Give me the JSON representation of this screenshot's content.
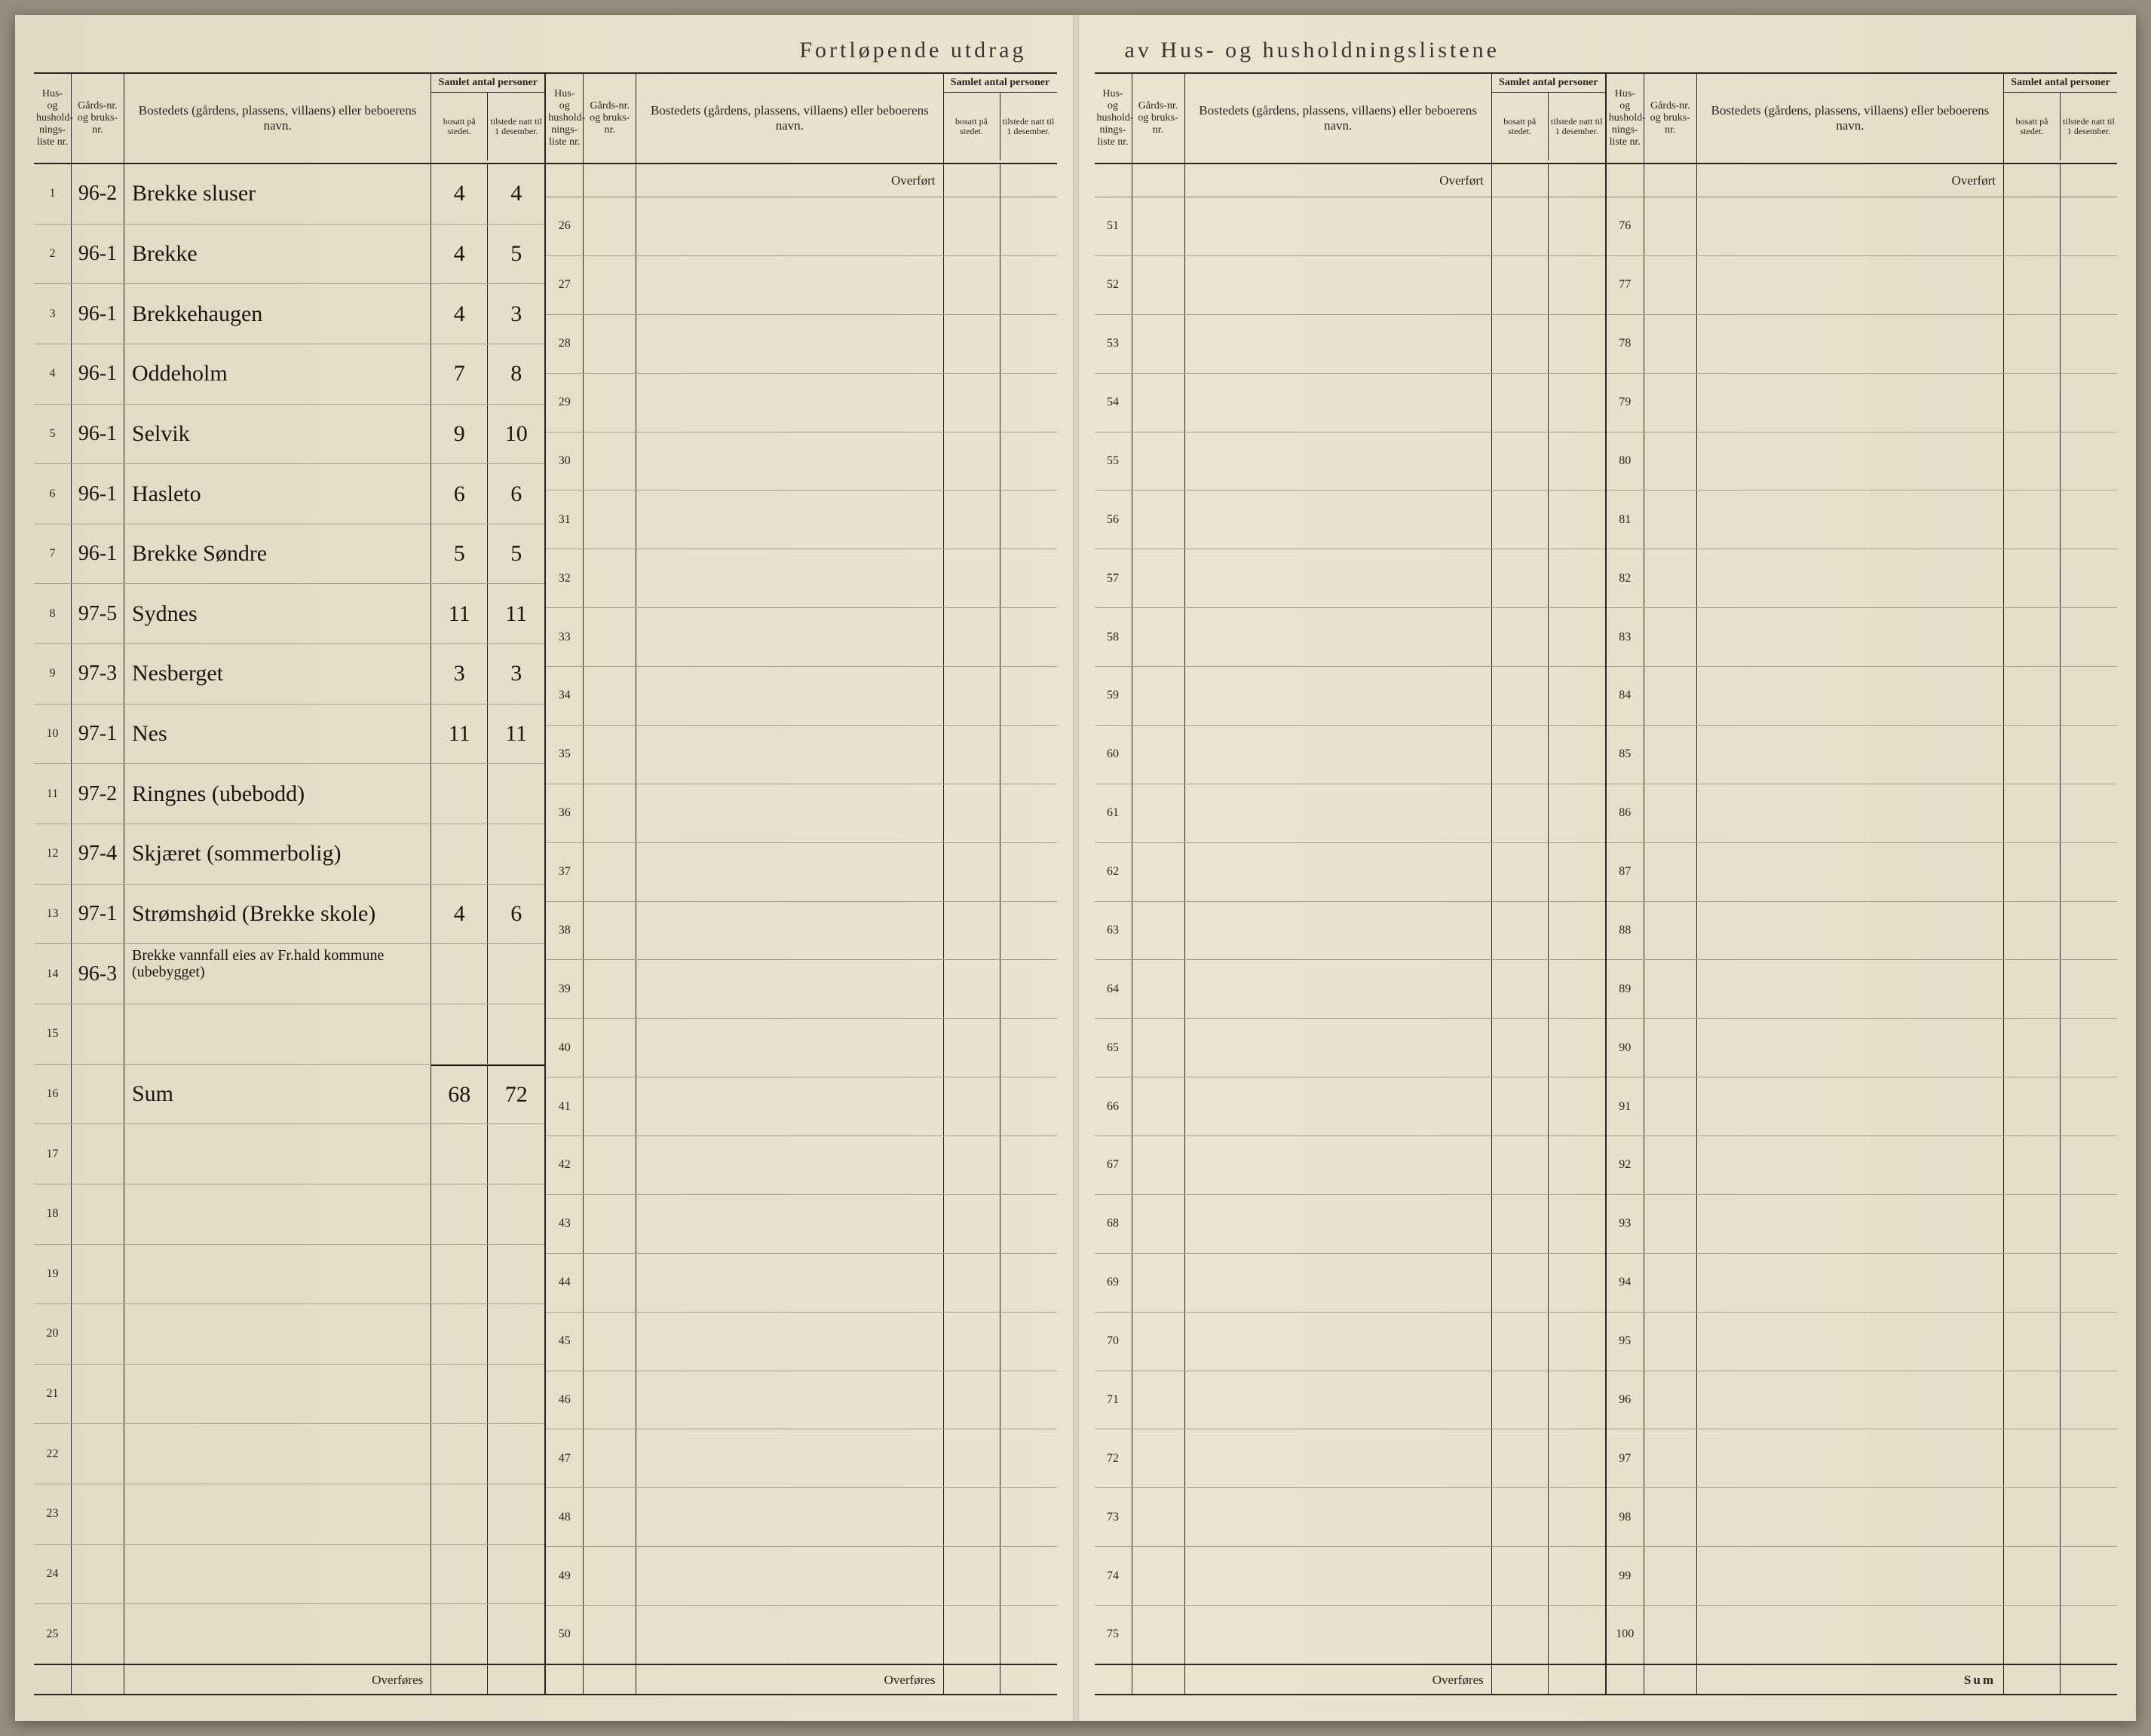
{
  "title_left": "Fortløpende utdrag",
  "title_right": "av Hus- og husholdningslistene",
  "header": {
    "nr": "Hus- og hushold-nings-liste nr.",
    "gard": "Gårds-nr. og bruks-nr.",
    "bosted": "Bostedets (gårdens, plassens, villaens) eller beboerens navn.",
    "samlet": "Samlet antal personer",
    "bosatt": "bosatt på stedet.",
    "tilstede": "tilstede natt til 1 desember."
  },
  "overfort": "Overført",
  "overfores": "Overføres",
  "sum": "Sum",
  "blocks": [
    {
      "start": 1,
      "rows": [
        {
          "n": "1",
          "g": "96-2",
          "b": "Brekke sluser",
          "s1": "4",
          "s2": "4"
        },
        {
          "n": "2",
          "g": "96-1",
          "b": "Brekke",
          "s1": "4",
          "s2": "5"
        },
        {
          "n": "3",
          "g": "96-1",
          "b": "Brekkehaugen",
          "s1": "4",
          "s2": "3"
        },
        {
          "n": "4",
          "g": "96-1",
          "b": "Oddeholm",
          "s1": "7",
          "s2": "8"
        },
        {
          "n": "5",
          "g": "96-1",
          "b": "Selvik",
          "s1": "9",
          "s2": "10"
        },
        {
          "n": "6",
          "g": "96-1",
          "b": "Hasleto",
          "s1": "6",
          "s2": "6"
        },
        {
          "n": "7",
          "g": "96-1",
          "b": "Brekke Søndre",
          "s1": "5",
          "s2": "5"
        },
        {
          "n": "8",
          "g": "97-5",
          "b": "Sydnes",
          "s1": "11",
          "s2": "11"
        },
        {
          "n": "9",
          "g": "97-3",
          "b": "Nesberget",
          "s1": "3",
          "s2": "3"
        },
        {
          "n": "10",
          "g": "97-1",
          "b": "Nes",
          "s1": "11",
          "s2": "11"
        },
        {
          "n": "11",
          "g": "97-2",
          "b": "Ringnes (ubebodd)",
          "s1": "",
          "s2": ""
        },
        {
          "n": "12",
          "g": "97-4",
          "b": "Skjæret (sommerbolig)",
          "s1": "",
          "s2": ""
        },
        {
          "n": "13",
          "g": "97-1",
          "b": "Strømshøid (Brekke skole)",
          "s1": "4",
          "s2": "6"
        },
        {
          "n": "14",
          "g": "96-3",
          "b": "Brekke vannfall eies av Fr.hald kommune (ubebygget)",
          "s1": "",
          "s2": "",
          "multi": true
        },
        {
          "n": "15",
          "g": "",
          "b": "",
          "s1": "",
          "s2": ""
        },
        {
          "n": "16",
          "g": "",
          "b": "Sum",
          "s1": "68",
          "s2": "72",
          "sumrow": true
        },
        {
          "n": "17",
          "g": "",
          "b": "",
          "s1": "",
          "s2": ""
        },
        {
          "n": "18",
          "g": "",
          "b": "",
          "s1": "",
          "s2": ""
        },
        {
          "n": "19",
          "g": "",
          "b": "",
          "s1": "",
          "s2": ""
        },
        {
          "n": "20",
          "g": "",
          "b": "",
          "s1": "",
          "s2": ""
        },
        {
          "n": "21",
          "g": "",
          "b": "",
          "s1": "",
          "s2": ""
        },
        {
          "n": "22",
          "g": "",
          "b": "",
          "s1": "",
          "s2": ""
        },
        {
          "n": "23",
          "g": "",
          "b": "",
          "s1": "",
          "s2": ""
        },
        {
          "n": "24",
          "g": "",
          "b": "",
          "s1": "",
          "s2": ""
        },
        {
          "n": "25",
          "g": "",
          "b": "",
          "s1": "",
          "s2": ""
        }
      ]
    },
    {
      "start": 26,
      "rows": []
    },
    {
      "start": 51,
      "rows": []
    },
    {
      "start": 76,
      "rows": []
    }
  ],
  "colors": {
    "paper": "#e8decb",
    "ink": "#2a2520",
    "handwriting": "#1a1510",
    "ruleline": "#a89e8c"
  }
}
